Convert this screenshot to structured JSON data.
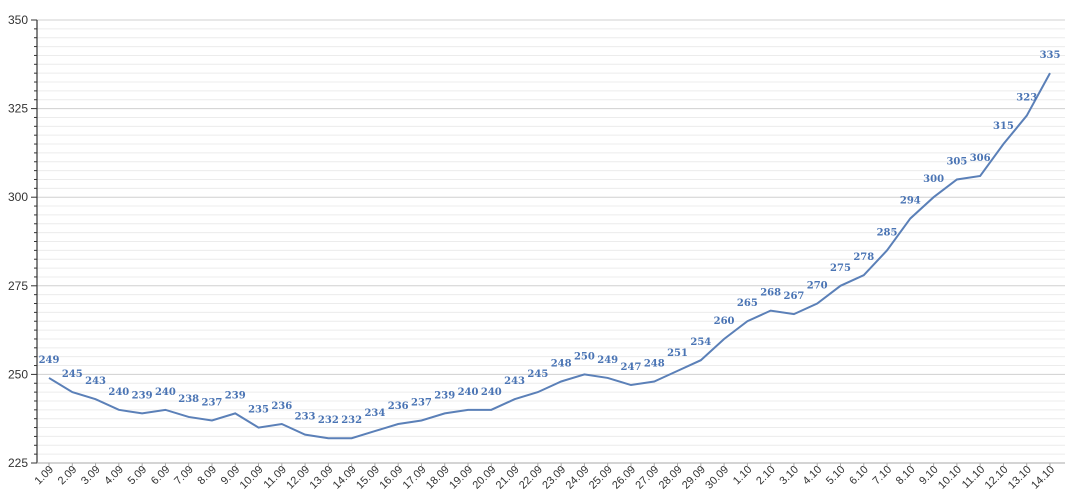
{
  "chart_data": {
    "type": "line",
    "title": "",
    "xlabel": "",
    "ylabel": "",
    "ylim": [
      225,
      350
    ],
    "yticks": [
      225,
      250,
      275,
      300,
      325,
      350
    ],
    "grid": true,
    "legend": "none",
    "line_color": "#5b80b8",
    "label_color": "#4a74b4",
    "categories": [
      "1.09",
      "2.09",
      "3.09",
      "4.09",
      "5.09",
      "6.09",
      "7.09",
      "8.09",
      "9.09",
      "10.09",
      "11.09",
      "12.09",
      "13.09",
      "14.09",
      "15.09",
      "16.09",
      "17.09",
      "18.09",
      "19.09",
      "20.09",
      "21.09",
      "22.09",
      "23.09",
      "24.09",
      "25.09",
      "26.09",
      "27.09",
      "28.09",
      "29.09",
      "30.09",
      "1.10",
      "2.10",
      "3.10",
      "4.10",
      "5.10",
      "6.10",
      "7.10",
      "8.10",
      "9.10",
      "10.10",
      "11.10",
      "12.10",
      "13.10",
      "14.10"
    ],
    "values": [
      249,
      245,
      243,
      240,
      239,
      240,
      238,
      237,
      239,
      235,
      236,
      233,
      232,
      232,
      234,
      236,
      237,
      239,
      240,
      240,
      243,
      245,
      248,
      250,
      249,
      247,
      248,
      251,
      254,
      260,
      265,
      268,
      267,
      270,
      275,
      278,
      285,
      294,
      300,
      305,
      306,
      315,
      323,
      335
    ]
  }
}
